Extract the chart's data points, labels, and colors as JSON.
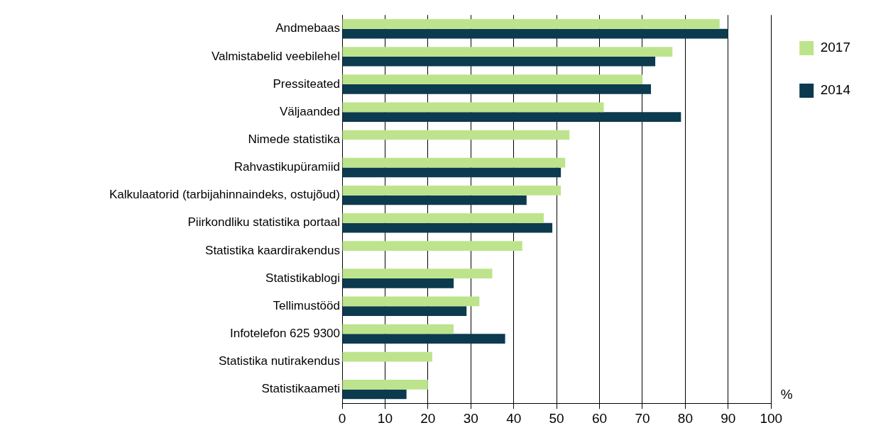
{
  "chart_data": {
    "type": "bar",
    "orientation": "horizontal",
    "xlabel": "%",
    "categories": [
      "Andmebaas",
      "Valmistabelid veebilehel",
      "Pressiteated",
      "Väljaanded",
      "Nimede statistika",
      "Rahvastikupüramiid",
      "Kalkulaatorid (tarbijahinnaindeks, ostujõud)",
      "Piirkondliku statistika portaal",
      "Statistika kaardirakendus",
      "Statistikablogi",
      "Tellimustööd",
      "Infotelefon 625 9300",
      "Statistika nutirakendus",
      "Statistikaameti"
    ],
    "series": [
      {
        "name": "2017",
        "color": "#bde48c",
        "values": [
          88,
          77,
          70,
          61,
          53,
          52,
          51,
          47,
          42,
          35,
          32,
          26,
          21,
          20
        ]
      },
      {
        "name": "2014",
        "color": "#0c3a4f",
        "values": [
          90,
          73,
          72,
          79,
          null,
          51,
          43,
          49,
          null,
          26,
          29,
          38,
          null,
          15
        ]
      }
    ],
    "xlim": [
      0,
      100
    ],
    "xticks": [
      0,
      10,
      20,
      30,
      40,
      50,
      60,
      70,
      80,
      90,
      100
    ],
    "grid": "x",
    "legend": "top right"
  }
}
